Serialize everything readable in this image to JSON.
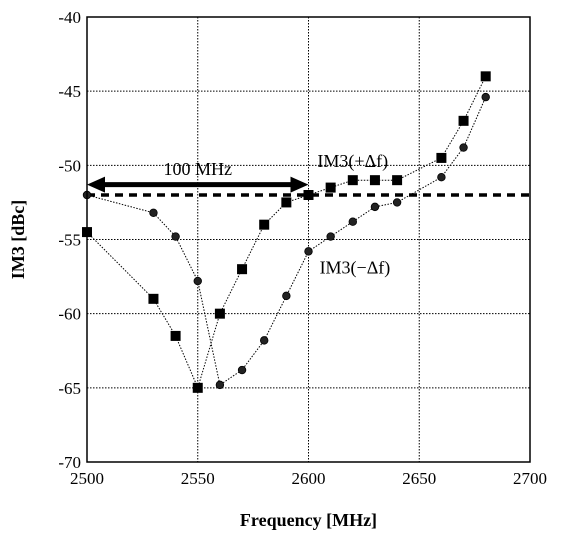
{
  "chart_data": {
    "type": "line",
    "title": "",
    "xlabel": "Frequency [MHz]",
    "ylabel": "IM3 [dBc]",
    "xlim": [
      2500,
      2700
    ],
    "ylim": [
      -70,
      -40
    ],
    "x_ticks": [
      2500,
      2550,
      2600,
      2650,
      2700
    ],
    "y_ticks": [
      -70,
      -65,
      -60,
      -55,
      -50,
      -45,
      -40
    ],
    "x_tick_labels": [
      "2500",
      "2550",
      "2600",
      "2650",
      "2700"
    ],
    "y_tick_labels": [
      "-70",
      "-65",
      "-60",
      "-55",
      "-50",
      "-45",
      "-40"
    ],
    "grid": true,
    "series": [
      {
        "name": "IM3(+Δf)",
        "marker": "square",
        "x": [
          2500,
          2530,
          2540,
          2550,
          2560,
          2570,
          2580,
          2590,
          2600,
          2610,
          2620,
          2630,
          2640,
          2660,
          2670,
          2680
        ],
        "y": [
          -54.5,
          -59,
          -61.5,
          -65,
          -60,
          -57,
          -54,
          -52.5,
          -52,
          -51.5,
          -51,
          -51,
          -51,
          -49.5,
          -47,
          -44
        ]
      },
      {
        "name": "IM3(−Δf)",
        "marker": "circle",
        "x": [
          2500,
          2530,
          2540,
          2550,
          2560,
          2570,
          2580,
          2590,
          2600,
          2610,
          2620,
          2630,
          2640,
          2660,
          2670,
          2680
        ],
        "y": [
          -52,
          -53.2,
          -54.8,
          -57.8,
          -64.8,
          -63.8,
          -61.8,
          -58.8,
          -55.8,
          -54.8,
          -53.8,
          -52.8,
          -52.5,
          -50.8,
          -48.8,
          -45.4
        ]
      }
    ],
    "reference_line": {
      "y": -52,
      "style": "dashed"
    },
    "annotations": [
      {
        "text": "100 MHz",
        "x_range": [
          2500,
          2600
        ],
        "y": -50.5
      },
      {
        "text": "IM3(+Δf)",
        "x": 2604,
        "y": -50.1
      },
      {
        "text": "IM3(−Δf)",
        "x": 2605,
        "y": -57.3
      }
    ]
  }
}
